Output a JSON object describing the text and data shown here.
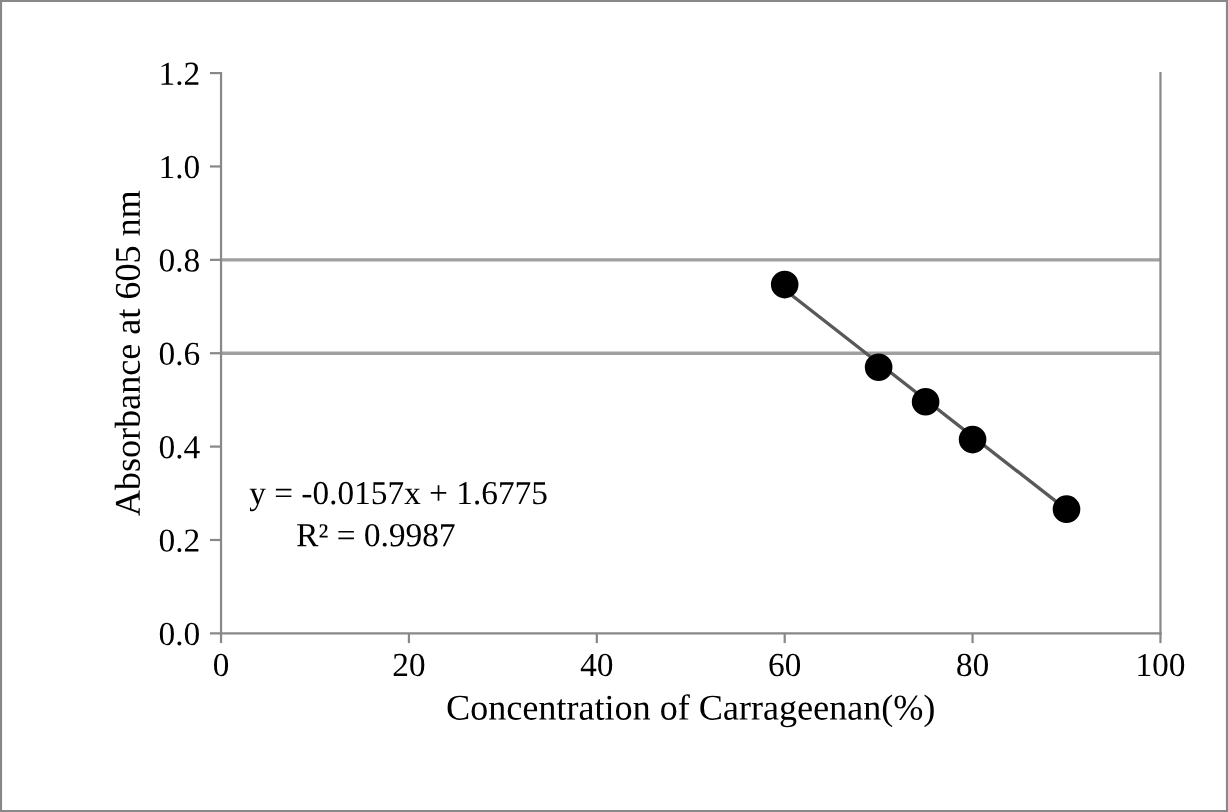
{
  "chart_data": {
    "type": "scatter",
    "xlabel": "Concentration of Carrageenan(%)",
    "ylabel": "Absorbance at 605 nm",
    "series": [
      {
        "color": "#000000",
        "x": [
          60,
          70,
          75,
          80,
          90
        ],
        "values": [
          0.747,
          0.57,
          0.496,
          0.415,
          0.266
        ],
        "marker": "circle"
      },
      {
        "type": "line",
        "color": "#595959",
        "x": [
          60,
          90
        ],
        "values": [
          0.736,
          0.265
        ]
      }
    ],
    "xlim": [
      0,
      100
    ],
    "xticks": [
      0,
      20,
      40,
      60,
      80,
      100
    ],
    "ylim": [
      0,
      1.2
    ],
    "yticks": [
      {
        "value": 0,
        "label": "0.0"
      },
      {
        "value": 0.2,
        "label": "0.2"
      },
      {
        "value": 0.4,
        "label": "0.4"
      },
      {
        "value": 0.6,
        "label": "0.6"
      },
      {
        "value": 0.8,
        "label": "0.8"
      },
      {
        "value": 1.0,
        "label": "1.0"
      },
      {
        "value": 1.2,
        "label": "1.2"
      }
    ],
    "ref_lines": [
      {
        "axis": "y",
        "value": 0.6,
        "color": "#a0a0a0"
      },
      {
        "axis": "y",
        "value": 0.8,
        "color": "#a0a0a0"
      }
    ],
    "annotations": [
      "y = -0.0157x + 1.6775",
      "R² = 0.9987"
    ],
    "grid": false,
    "legend": false
  }
}
